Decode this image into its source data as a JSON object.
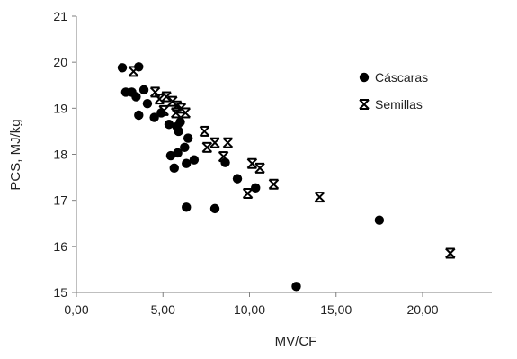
{
  "chart_data": {
    "type": "scatter",
    "xlabel": "MV/CF",
    "ylabel": "PCS, MJ/kg",
    "xlim": [
      0,
      24
    ],
    "ylim": [
      15,
      21
    ],
    "x_ticks": [
      0,
      5,
      10,
      15,
      20
    ],
    "x_tick_labels": [
      "0,00",
      "5,00",
      "10,00",
      "15,00",
      "20,00"
    ],
    "y_ticks": [
      15,
      16,
      17,
      18,
      19,
      20,
      21
    ],
    "y_tick_labels": [
      "15",
      "16",
      "17",
      "18",
      "19",
      "20",
      "21"
    ],
    "grid": false,
    "legend_position": "top-right",
    "series": [
      {
        "name": "Cáscaras",
        "marker": "circle",
        "color": "#000000",
        "points": [
          [
            2.65,
            19.88
          ],
          [
            3.6,
            19.9
          ],
          [
            2.85,
            19.35
          ],
          [
            3.2,
            19.35
          ],
          [
            3.9,
            19.4
          ],
          [
            3.45,
            19.25
          ],
          [
            4.1,
            19.1
          ],
          [
            3.6,
            18.85
          ],
          [
            4.5,
            18.8
          ],
          [
            4.9,
            18.9
          ],
          [
            5.35,
            18.65
          ],
          [
            5.8,
            18.6
          ],
          [
            6.0,
            18.7
          ],
          [
            5.9,
            18.5
          ],
          [
            6.45,
            18.35
          ],
          [
            6.25,
            18.15
          ],
          [
            5.45,
            17.97
          ],
          [
            5.85,
            18.03
          ],
          [
            6.35,
            17.8
          ],
          [
            6.8,
            17.88
          ],
          [
            5.65,
            17.7
          ],
          [
            8.6,
            17.82
          ],
          [
            9.3,
            17.47
          ],
          [
            10.35,
            17.27
          ],
          [
            6.35,
            16.85
          ],
          [
            8.0,
            16.82
          ],
          [
            12.7,
            15.13
          ],
          [
            17.5,
            16.57
          ]
        ]
      },
      {
        "name": "Semillas",
        "marker": "star",
        "color": "#000000",
        "points": [
          [
            3.3,
            19.8
          ],
          [
            4.55,
            19.35
          ],
          [
            4.8,
            19.2
          ],
          [
            5.2,
            19.25
          ],
          [
            5.55,
            19.15
          ],
          [
            5.8,
            19.05
          ],
          [
            6.05,
            19.0
          ],
          [
            6.3,
            18.9
          ],
          [
            5.05,
            18.95
          ],
          [
            5.75,
            18.9
          ],
          [
            7.4,
            18.5
          ],
          [
            7.55,
            18.15
          ],
          [
            8.0,
            18.25
          ],
          [
            8.75,
            18.25
          ],
          [
            8.5,
            17.95
          ],
          [
            10.15,
            17.8
          ],
          [
            10.6,
            17.7
          ],
          [
            11.4,
            17.35
          ],
          [
            9.9,
            17.15
          ],
          [
            14.05,
            17.07
          ],
          [
            21.6,
            15.85
          ]
        ]
      }
    ]
  }
}
